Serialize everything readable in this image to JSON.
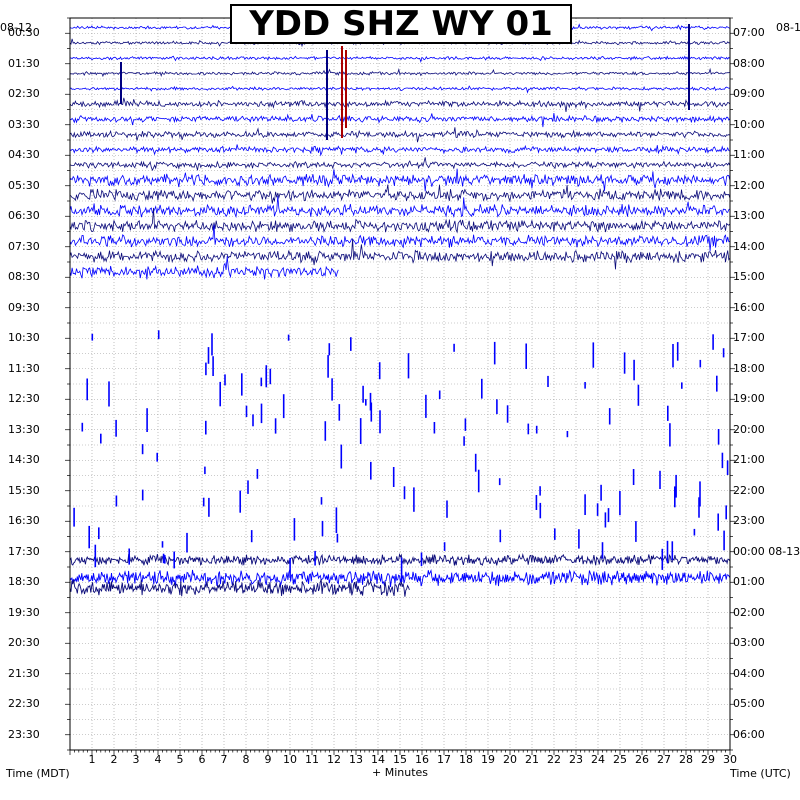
{
  "chart_data": {
    "type": "line",
    "title": "YDD SHZ WY 01",
    "xlabel": "+ Minutes",
    "ylabel_left": "Time (MDT)",
    "ylabel_right": "Time (UTC)",
    "xlim": [
      0,
      30
    ],
    "x_ticks": [
      "1",
      "2",
      "3",
      "4",
      "5",
      "6",
      "7",
      "8",
      "9",
      "10",
      "11",
      "12",
      "13",
      "14",
      "15",
      "16",
      "17",
      "18",
      "19",
      "20",
      "21",
      "22",
      "23",
      "24",
      "25",
      "26",
      "27",
      "28",
      "29",
      "30"
    ],
    "date_left": "08-12",
    "date_right": "08-1",
    "left_labels": [
      "00:30",
      "01:30",
      "02:30",
      "03:30",
      "04:30",
      "05:30",
      "06:30",
      "07:30",
      "08:30",
      "09:30",
      "10:30",
      "11:30",
      "12:30",
      "13:30",
      "14:30",
      "15:30",
      "16:30",
      "17:30",
      "18:30",
      "19:30",
      "20:30",
      "21:30",
      "22:30",
      "23:30"
    ],
    "right_labels": [
      "07:00",
      "08:00",
      "09:00",
      "10:00",
      "11:00",
      "12:00",
      "13:00",
      "14:00",
      "15:00",
      "16:00",
      "17:00",
      "18:00",
      "19:00",
      "20:00",
      "21:00",
      "22:00",
      "23:00",
      "00:00 08-13",
      "01:00",
      "02:00",
      "03:00",
      "04:00",
      "05:00",
      "06:00"
    ],
    "trace_colors": [
      "#0000ff",
      "#0c0c7a"
    ],
    "trace_count_data_rows": 17,
    "grid": true
  }
}
